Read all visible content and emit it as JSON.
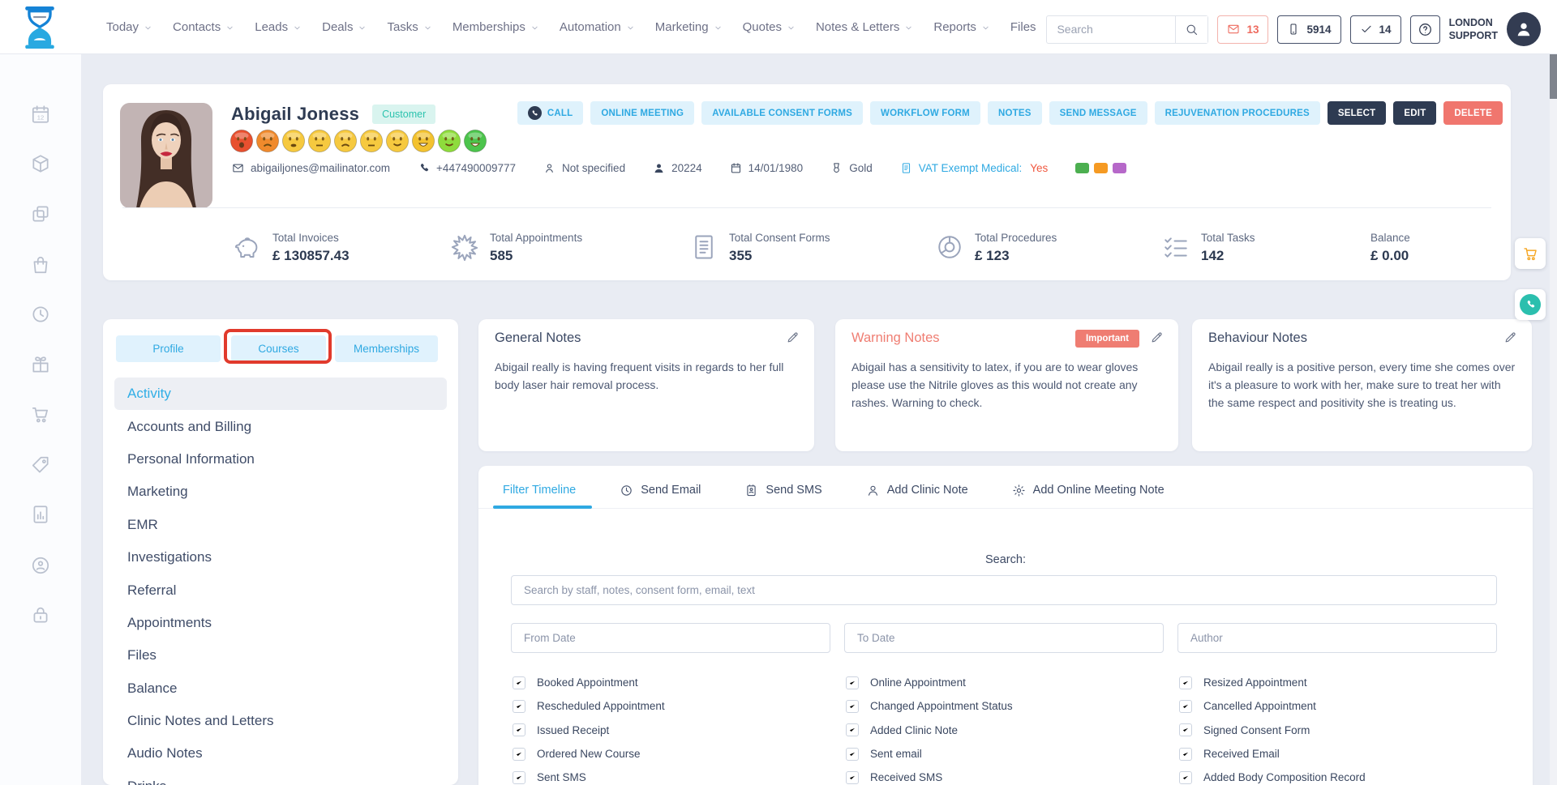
{
  "topnav": {
    "search_placeholder": "Search",
    "items": [
      {
        "label": "Today",
        "chevron": true
      },
      {
        "label": "Contacts",
        "chevron": true
      },
      {
        "label": "Leads",
        "chevron": true
      },
      {
        "label": "Deals",
        "chevron": true
      },
      {
        "label": "Tasks",
        "chevron": true
      },
      {
        "label": "Memberships",
        "chevron": true
      },
      {
        "label": "Automation",
        "chevron": true
      },
      {
        "label": "Marketing",
        "chevron": true
      },
      {
        "label": "Quotes",
        "chevron": true
      },
      {
        "label": "Notes & Letters",
        "chevron": true
      },
      {
        "label": "Reports",
        "chevron": true
      },
      {
        "label": "Files",
        "chevron": false
      }
    ],
    "mail_count": "13",
    "sms_count": "5914",
    "task_count": "14",
    "account_line1": "LONDON",
    "account_line2": "SUPPORT"
  },
  "header": {
    "name": "Abigail Joness",
    "type_badge": "Customer",
    "mood": [
      {
        "color": "#e8502f",
        "mouth": "open"
      },
      {
        "color": "#f08a2c",
        "mouth": "frown"
      },
      {
        "color": "#f6c93f",
        "mouth": "grimace"
      },
      {
        "color": "#f6c93f",
        "mouth": "neutral"
      },
      {
        "color": "#f6c93f",
        "mouth": "frown"
      },
      {
        "color": "#f6c93f",
        "mouth": "neutral"
      },
      {
        "color": "#f6c93f",
        "mouth": "smile"
      },
      {
        "color": "#f3c22f",
        "mouth": "laugh"
      },
      {
        "color": "#8edc3c",
        "mouth": "smile"
      },
      {
        "color": "#4cc44c",
        "mouth": "laugh"
      }
    ],
    "meta": [
      {
        "icon": "envelope",
        "text": "abigailjones@mailinator.com",
        "interactable": true
      },
      {
        "icon": "phone",
        "text": "+447490009777",
        "interactable": true
      },
      {
        "icon": "gender",
        "text": "Not specified"
      },
      {
        "icon": "user",
        "text": "20224"
      },
      {
        "icon": "calendar",
        "text": "14/01/1980"
      },
      {
        "icon": "medal",
        "text": "Gold"
      },
      {
        "icon": "document",
        "text": "VAT Exempt Medical:",
        "value": "Yes",
        "accent": true
      }
    ],
    "tags": [
      "#4caf50",
      "#f59a23",
      "#b668c9"
    ],
    "actions": [
      {
        "label": "CALL",
        "style": "light",
        "icon": "call"
      },
      {
        "label": "ONLINE MEETING",
        "style": "light"
      },
      {
        "label": "AVAILABLE CONSENT FORMS",
        "style": "light"
      },
      {
        "label": "WORKFLOW FORM",
        "style": "light"
      },
      {
        "label": "NOTES",
        "style": "light"
      },
      {
        "label": "SEND MESSAGE",
        "style": "light"
      },
      {
        "label": "REJUVENATION PROCEDURES",
        "style": "light"
      },
      {
        "label": "SELECT",
        "style": "dark"
      },
      {
        "label": "EDIT",
        "style": "dark"
      },
      {
        "label": "DELETE",
        "style": "danger"
      }
    ]
  },
  "stats": [
    {
      "icon": "piggy-bank",
      "label": "Total Invoices",
      "value": "£ 130857.43"
    },
    {
      "icon": "starburst",
      "label": "Total Appointments",
      "value": "585"
    },
    {
      "icon": "consent-form",
      "label": "Total Consent Forms",
      "value": "355"
    },
    {
      "icon": "procedures",
      "label": "Total Procedures",
      "value": "£ 123"
    },
    {
      "icon": "task-list",
      "label": "Total Tasks",
      "value": "142"
    },
    {
      "icon": "",
      "label": "Balance",
      "value": "£ 0.00"
    }
  ],
  "sidebar": {
    "icons": [
      "calendar-12",
      "package",
      "copy",
      "shopping-bag",
      "history",
      "gift",
      "cart",
      "price-tag",
      "report",
      "client-sync",
      "lock"
    ]
  },
  "left_panel": {
    "tabs": [
      {
        "label": "Profile"
      },
      {
        "label": "Courses",
        "highlighted": true
      },
      {
        "label": "Memberships"
      }
    ],
    "menu": [
      {
        "label": "Activity",
        "active": true
      },
      {
        "label": "Accounts and Billing"
      },
      {
        "label": "Personal Information"
      },
      {
        "label": "Marketing"
      },
      {
        "label": "EMR"
      },
      {
        "label": "Investigations"
      },
      {
        "label": "Referral"
      },
      {
        "label": "Appointments"
      },
      {
        "label": "Files"
      },
      {
        "label": "Balance"
      },
      {
        "label": "Clinic Notes and Letters"
      },
      {
        "label": "Audio Notes"
      },
      {
        "label": "Drinks"
      }
    ]
  },
  "notes": [
    {
      "title": "General Notes",
      "text": "Abigail really is having frequent visits in regards to her full body laser hair removal process."
    },
    {
      "title": "Warning Notes",
      "badge": "Important",
      "warning": true,
      "text": "Abigail has a sensitivity to latex, if you are to wear gloves please use the Nitrile gloves as this would not create any rashes. Warning to check."
    },
    {
      "title": "Behaviour Notes",
      "text": "Abigail really is a positive person, every time she comes over it's a pleasure to work with her, make sure to treat her with the same respect and positivity she is treating us."
    }
  ],
  "timeline": {
    "tabs": [
      {
        "label": "Filter Timeline",
        "active": true
      },
      {
        "label": "Send Email",
        "icon": "history"
      },
      {
        "label": "Send SMS",
        "icon": "sms"
      },
      {
        "label": "Add Clinic Note",
        "icon": "person"
      },
      {
        "label": "Add Online Meeting Note",
        "icon": "gear"
      }
    ],
    "search_label": "Search:",
    "search_placeholder": "Search by staff, notes, consent form, email, text",
    "filters": [
      {
        "placeholder": "From Date"
      },
      {
        "placeholder": "To Date"
      },
      {
        "placeholder": "Author"
      }
    ],
    "checkbox_columns": [
      [
        "Booked Appointment",
        "Rescheduled Appointment",
        "Issued Receipt",
        "Ordered New Course",
        "Sent SMS"
      ],
      [
        "Online Appointment",
        "Changed Appointment Status",
        "Added Clinic Note",
        "Sent email",
        "Received SMS"
      ],
      [
        "Resized Appointment",
        "Cancelled Appointment",
        "Signed Consent Form",
        "Received Email",
        "Added Body Composition Record"
      ]
    ],
    "all_checked": true
  },
  "colors": {
    "primary": "#2fa9e2",
    "danger": "#f0766e",
    "dark": "#2e3b52",
    "teal": "#2cc3ae",
    "annotation": "#e13a2c",
    "cart_icon": "#f5a623",
    "phone_widget": "#2bbfae"
  }
}
